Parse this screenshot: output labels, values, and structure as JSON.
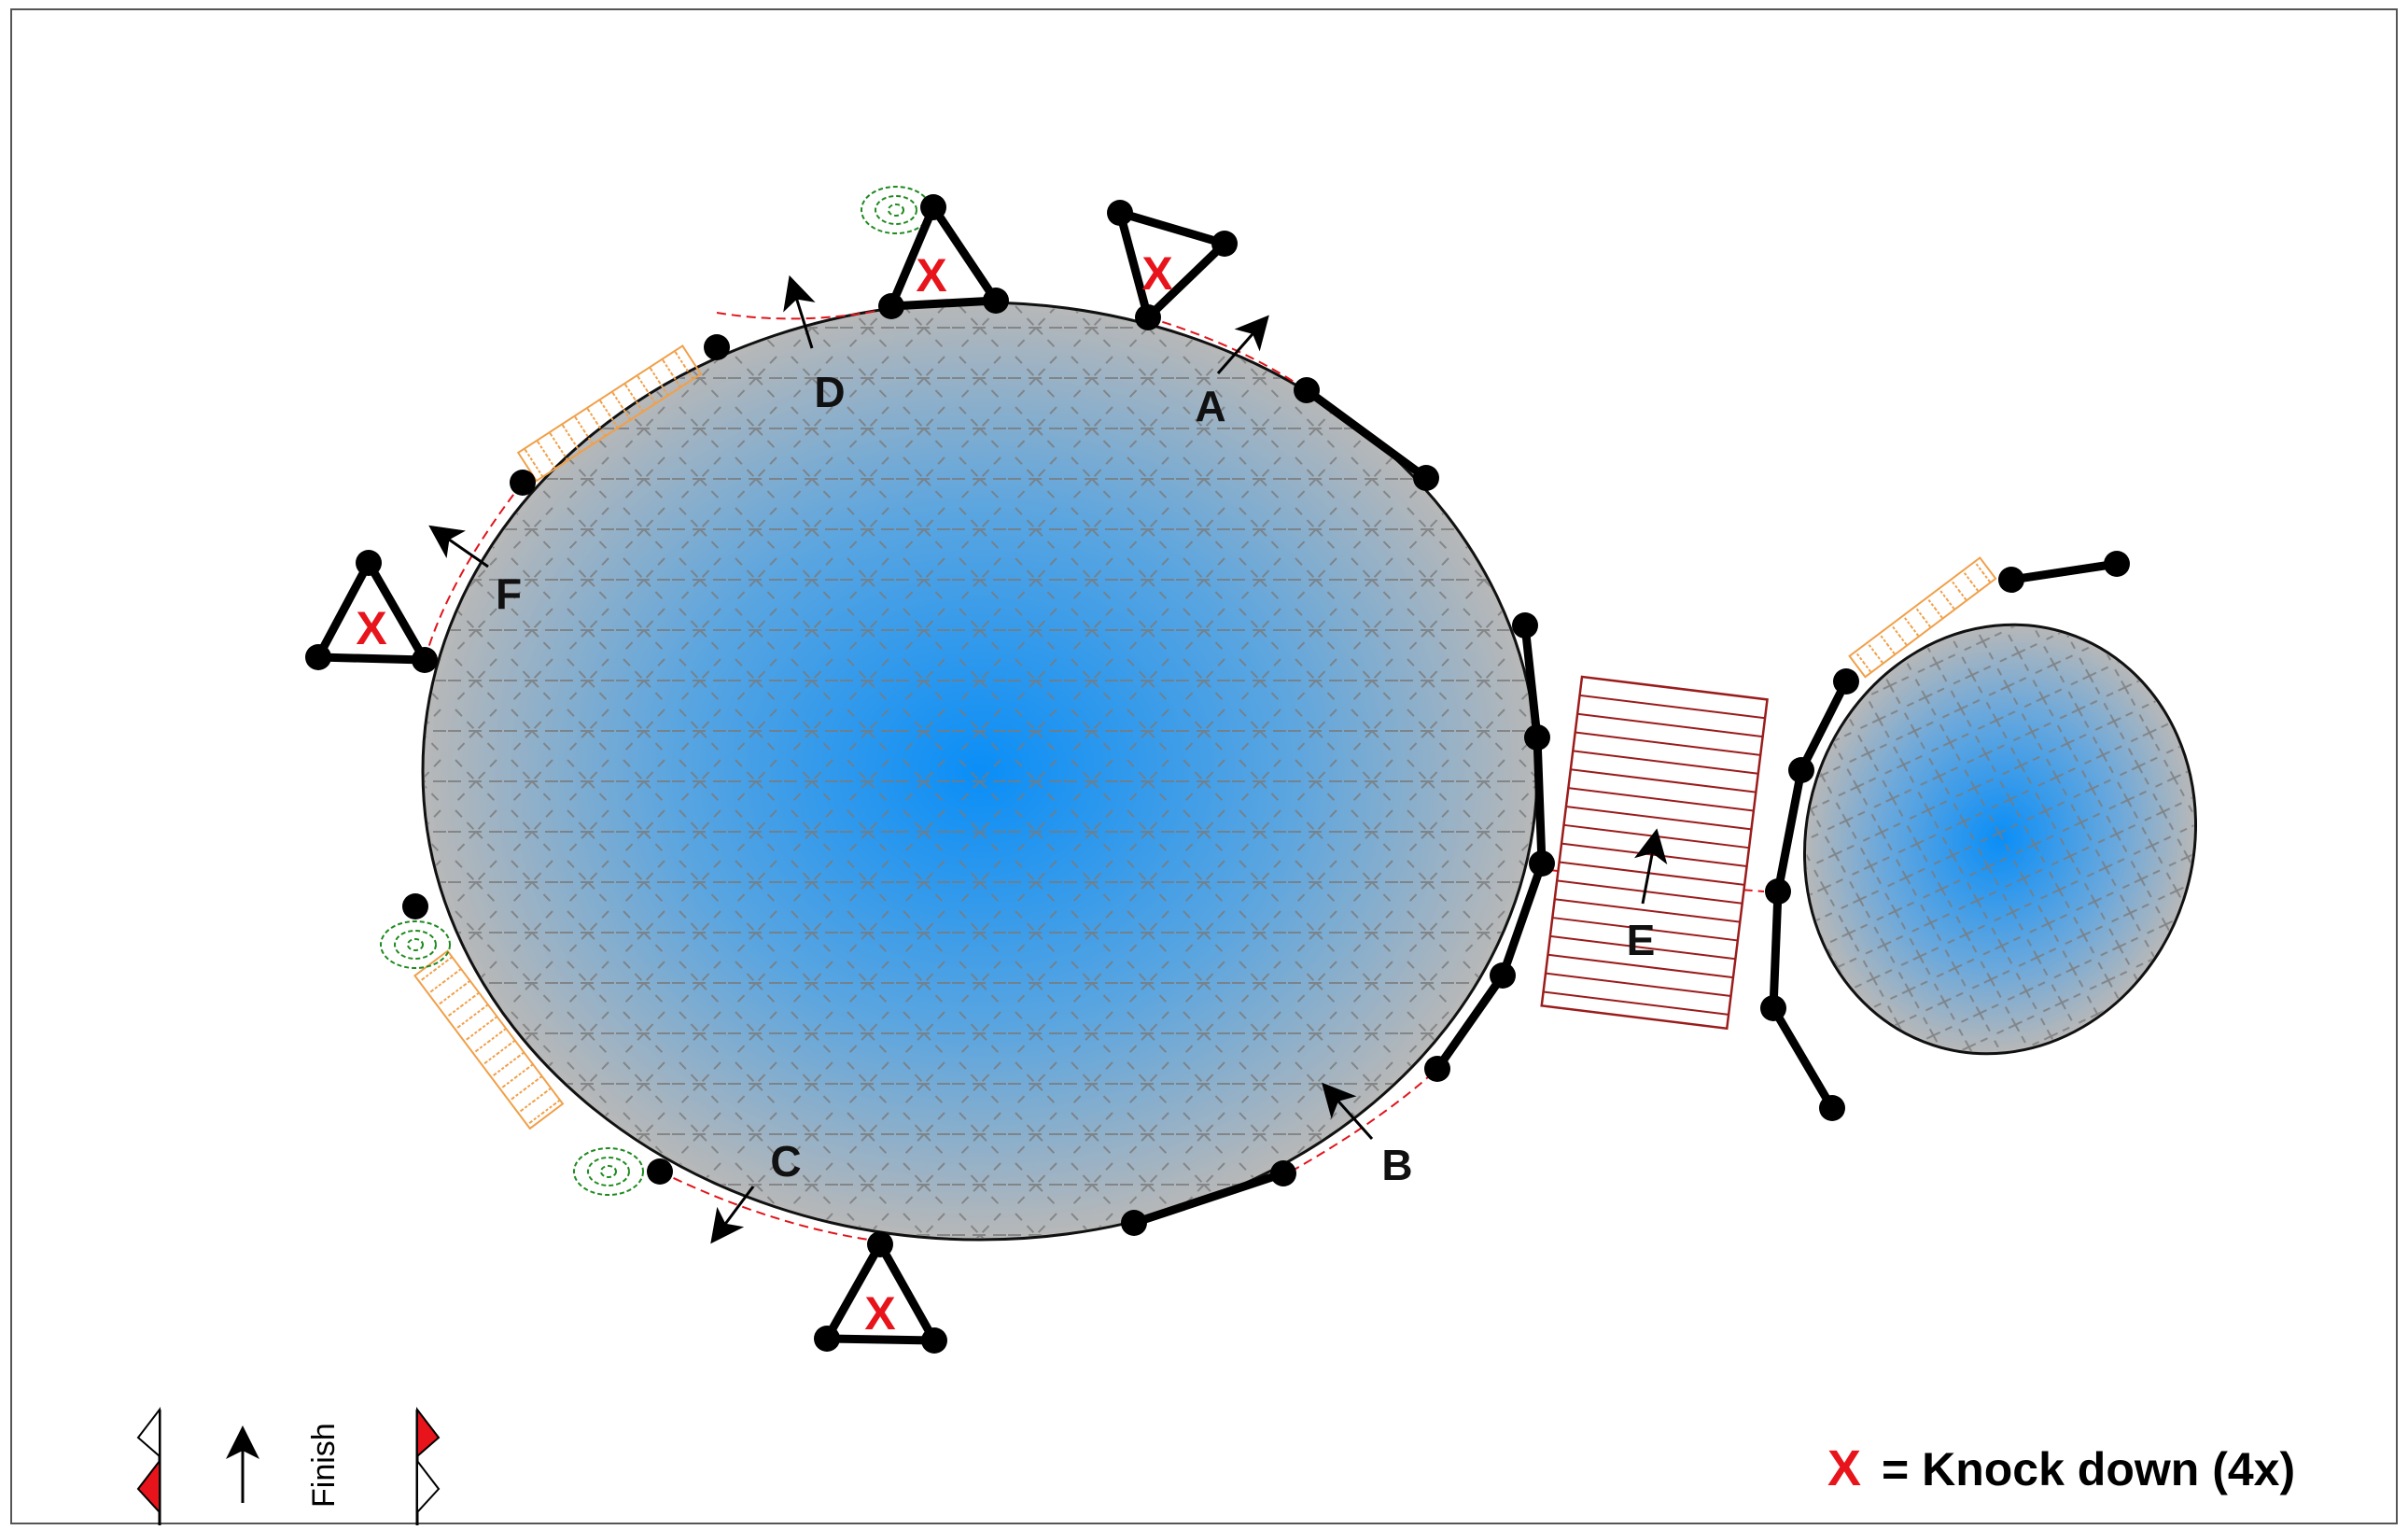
{
  "obstacle_labels": {
    "a": "A",
    "b": "B",
    "c": "C",
    "d": "D",
    "e": "E",
    "f": "F"
  },
  "knockdown_mark": "X",
  "legend": {
    "symbol": "X",
    "text": "= Knock down (4x)"
  },
  "finish_label": "Finish",
  "colors": {
    "arena_blue": "#0a8ef7",
    "arena_gray": "#b8b8b8",
    "hurdle_orange": "#f0a04a",
    "ramp_red": "#9b1c1c",
    "tree_green": "#1e8a1e",
    "path_red": "#e0141b",
    "knockdown_red": "#e8141b"
  }
}
